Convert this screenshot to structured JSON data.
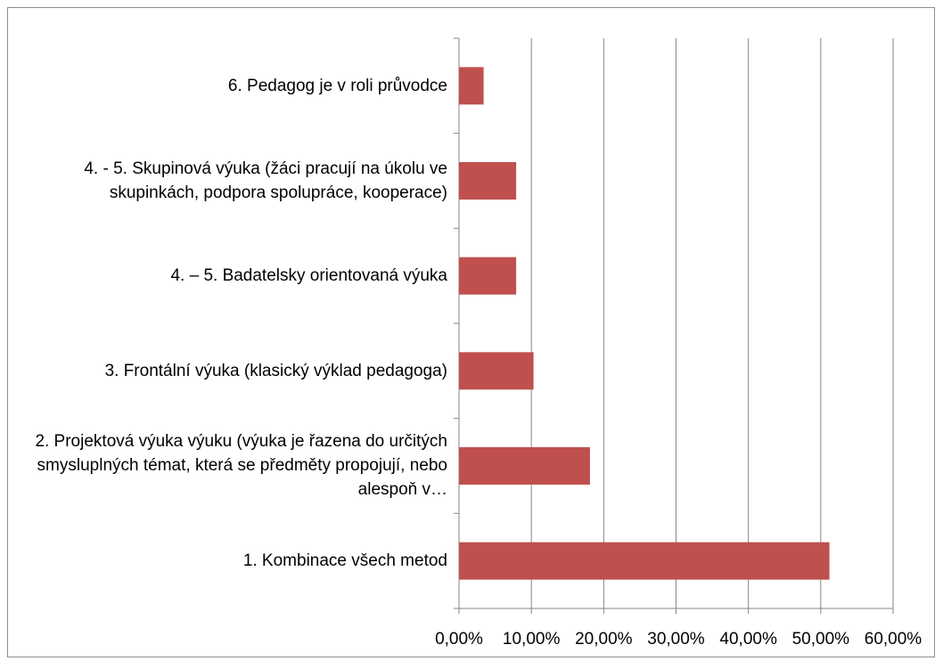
{
  "chart_data": {
    "type": "bar",
    "orientation": "horizontal",
    "categories": [
      "1. Kombinace všech metod",
      "2. Projektová výuka výuku (výuka je řazena do určitých smysluplných témat, která se předměty propojují, nebo alespoň v…",
      "3. Frontální výuka (klasický výklad pedagoga)",
      "4. – 5. Badatelsky orientovaná výuka",
      "4. - 5. Skupinová výuka (žáci pracují na úkolu ve skupinkách, podpora spolupráce, kooperace)",
      "6. Pedagog je v roli průvodce"
    ],
    "values": [
      51.2,
      18.1,
      10.3,
      7.9,
      7.9,
      3.4
    ],
    "color": "#c0504d",
    "xlim": [
      0,
      60
    ],
    "xticks": [
      {
        "value": 0,
        "label": "0,00%"
      },
      {
        "value": 10,
        "label": "10,00%"
      },
      {
        "value": 20,
        "label": "20,00%"
      },
      {
        "value": 30,
        "label": "30,00%"
      },
      {
        "value": 40,
        "label": "40,00%"
      },
      {
        "value": 50,
        "label": "50,00%"
      },
      {
        "value": 60,
        "label": "60,00%"
      }
    ],
    "grid": true
  }
}
